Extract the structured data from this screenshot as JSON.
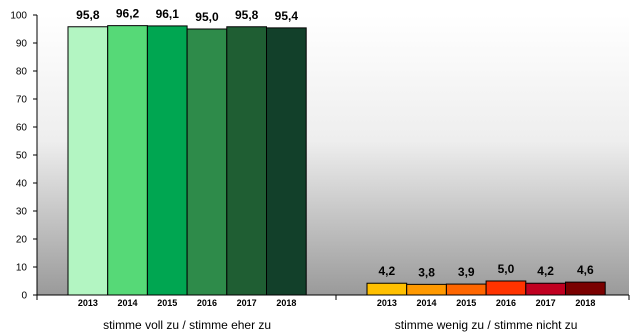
{
  "chart_data": {
    "type": "bar",
    "ylim": [
      0,
      100
    ],
    "yticks": [
      "0",
      "10",
      "20",
      "30",
      "40",
      "50",
      "60",
      "70",
      "80",
      "90",
      "100"
    ],
    "grid": false,
    "groups": [
      {
        "name": "stimme voll zu / stimme eher zu",
        "categories": [
          "2013",
          "2014",
          "2015",
          "2016",
          "2017",
          "2018"
        ],
        "values": [
          95.8,
          96.2,
          96.1,
          95.0,
          95.8,
          95.4
        ],
        "labels": [
          "95,8",
          "96,2",
          "96,1",
          "95,0",
          "95,8",
          "95,4"
        ],
        "colors": [
          "#b3f5c2",
          "#56d977",
          "#00a651",
          "#2e8b4a",
          "#1f5e33",
          "#12402a"
        ]
      },
      {
        "name": "stimme wenig zu / stimme nicht zu",
        "categories": [
          "2013",
          "2014",
          "2015",
          "2016",
          "2017",
          "2018"
        ],
        "values": [
          4.2,
          3.8,
          3.9,
          5.0,
          4.2,
          4.6
        ],
        "labels": [
          "4,2",
          "3,8",
          "3,9",
          "5,0",
          "4,2",
          "4,6"
        ],
        "colors": [
          "#ffc000",
          "#ff9900",
          "#ff6600",
          "#ff3300",
          "#c00020",
          "#7a0000"
        ]
      }
    ]
  }
}
